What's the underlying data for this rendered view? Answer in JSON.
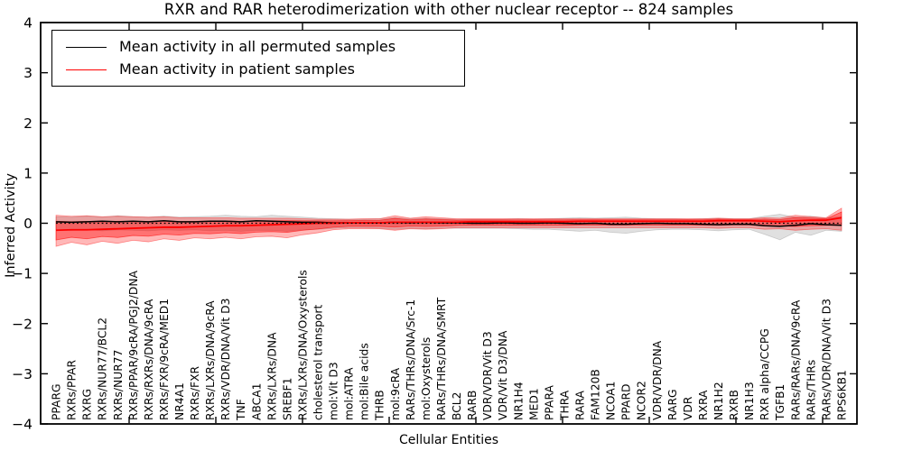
{
  "figure": {
    "title": "RXR and RAR heterodimerization with other nuclear receptor -- 824 samples",
    "xlabel": "Cellular Entities",
    "ylabel": "Inferred Activity",
    "legend": {
      "entries": [
        {
          "label": "Mean activity in all permuted samples",
          "color": "#000000"
        },
        {
          "label": "Mean activity in patient samples",
          "color": "#ff0000"
        }
      ]
    }
  },
  "chart_data": {
    "type": "line",
    "title": "RXR and RAR heterodimerization with other nuclear receptor -- 824 samples",
    "xlabel": "Cellular Entities",
    "ylabel": "Inferred Activity",
    "ylim": [
      -4,
      4
    ],
    "yticks": [
      -4,
      -3,
      -2,
      -1,
      0,
      1,
      2,
      3,
      4
    ],
    "ytick_labels": [
      "−4",
      "−3",
      "−2",
      "−1",
      "0",
      "1",
      "2",
      "3",
      "4"
    ],
    "grid": false,
    "legend_position": "upper left",
    "categories": [
      "PPARG",
      "RXRs/PPAR",
      "RXRG",
      "RXRs/NUR77/BCL2",
      "RXRs/NUR77",
      "RXRs/PPAR/9cRA/PGJ2/DNA",
      "RXRs/RXRs/DNA/9cRA",
      "RXRs/FXR/9cRA/MED1",
      "NR4A1",
      "RXRs/FXR",
      "RXRs/LXRs/DNA/9cRA",
      "RXRs/VDR/DNA/Vit D3",
      "TNF",
      "ABCA1",
      "RXRs/LXRs/DNA",
      "SREBF1",
      "RXRs/LXRs/DNA/Oxysterols",
      "cholesterol transport",
      "mol:Vit D3",
      "mol:ATRA",
      "mol:Bile acids",
      "THRB",
      "mol:9cRA",
      "RARs/THRs/DNA/Src-1",
      "mol:Oxysterols",
      "RARs/THRs/DNA/SMRT",
      "BCL2",
      "RARB",
      "VDR/VDR/Vit D3",
      "VDR/Vit D3/DNA",
      "NR1H4",
      "MED1",
      "PPARA",
      "THRA",
      "RARA",
      "FAM120B",
      "NCOA1",
      "PPARD",
      "NCOR2",
      "VDR/VDR/DNA",
      "RARG",
      "VDR",
      "RXRA",
      "NR1H2",
      "RXRB",
      "NR1H3",
      "RXR alpha/CCPG",
      "TGFB1",
      "RARs/RARs/DNA/9cRA",
      "RARs/THRs",
      "RARs/VDR/DNA/Vit D3",
      "RPS6KB1"
    ],
    "series": [
      {
        "name": "Mean activity in all permuted samples",
        "color": "#000000",
        "style": "solid",
        "values": [
          0.03,
          0.02,
          0.03,
          0.04,
          0.03,
          0.04,
          0.03,
          0.05,
          0.03,
          0.03,
          0.04,
          0.04,
          0.03,
          0.05,
          0.04,
          0.03,
          0.02,
          0.02,
          0.01,
          0.01,
          0.01,
          0.01,
          0.02,
          0.01,
          0.02,
          0.01,
          0.01,
          0.0,
          0.0,
          0.01,
          0.0,
          0.0,
          0.01,
          0.0,
          -0.01,
          0.0,
          -0.02,
          -0.02,
          -0.01,
          0.0,
          -0.01,
          -0.01,
          -0.02,
          -0.03,
          -0.02,
          -0.02,
          -0.05,
          -0.06,
          -0.04,
          -0.01,
          -0.03,
          -0.04
        ]
      },
      {
        "name": "Mean activity in patient samples",
        "color": "#ff0000",
        "style": "solid",
        "values": [
          -0.14,
          -0.13,
          -0.13,
          -0.12,
          -0.11,
          -0.1,
          -0.09,
          -0.08,
          -0.08,
          -0.07,
          -0.06,
          -0.05,
          -0.05,
          -0.04,
          -0.03,
          -0.02,
          -0.01,
          0.0,
          0.0,
          0.01,
          0.01,
          0.01,
          0.02,
          0.02,
          0.02,
          0.02,
          0.02,
          0.03,
          0.03,
          0.03,
          0.03,
          0.03,
          0.03,
          0.03,
          0.04,
          0.04,
          0.04,
          0.04,
          0.04,
          0.04,
          0.04,
          0.04,
          0.04,
          0.05,
          0.05,
          0.05,
          0.04,
          0.03,
          0.05,
          0.06,
          0.06,
          0.11
        ]
      }
    ],
    "bands": [
      {
        "name": "permuted samples spread",
        "color": "#999999",
        "opacity": 0.3,
        "upper": [
          0.13,
          0.12,
          0.14,
          0.12,
          0.15,
          0.13,
          0.12,
          0.14,
          0.12,
          0.13,
          0.14,
          0.16,
          0.14,
          0.13,
          0.16,
          0.14,
          0.12,
          0.1,
          0.09,
          0.08,
          0.08,
          0.09,
          0.11,
          0.09,
          0.1,
          0.09,
          0.08,
          0.08,
          0.08,
          0.08,
          0.09,
          0.08,
          0.09,
          0.1,
          0.11,
          0.1,
          0.11,
          0.12,
          0.1,
          0.09,
          0.09,
          0.08,
          0.09,
          0.1,
          0.09,
          0.09,
          0.14,
          0.18,
          0.12,
          0.14,
          0.1,
          0.13
        ],
        "lower": [
          -0.13,
          -0.14,
          -0.12,
          -0.15,
          -0.13,
          -0.14,
          -0.15,
          -0.13,
          -0.14,
          -0.13,
          -0.15,
          -0.14,
          -0.16,
          -0.14,
          -0.14,
          -0.16,
          -0.13,
          -0.12,
          -0.1,
          -0.09,
          -0.09,
          -0.1,
          -0.12,
          -0.1,
          -0.11,
          -0.1,
          -0.1,
          -0.1,
          -0.1,
          -0.1,
          -0.11,
          -0.12,
          -0.12,
          -0.14,
          -0.16,
          -0.14,
          -0.18,
          -0.2,
          -0.16,
          -0.13,
          -0.12,
          -0.12,
          -0.13,
          -0.15,
          -0.13,
          -0.12,
          -0.22,
          -0.33,
          -0.18,
          -0.24,
          -0.14,
          -0.16
        ]
      },
      {
        "name": "patient samples spread",
        "color": "#ff0000",
        "opacity": 0.28,
        "inner_fraction": 0.6,
        "inner_opacity": 0.38,
        "mean_series": 1,
        "upper": [
          0.16,
          0.14,
          0.15,
          0.13,
          0.14,
          0.13,
          0.12,
          0.13,
          0.11,
          0.11,
          0.11,
          0.11,
          0.1,
          0.1,
          0.1,
          0.1,
          0.09,
          0.08,
          0.08,
          0.08,
          0.09,
          0.09,
          0.15,
          0.1,
          0.13,
          0.11,
          0.09,
          0.09,
          0.09,
          0.09,
          0.09,
          0.09,
          0.09,
          0.09,
          0.09,
          0.09,
          0.09,
          0.09,
          0.09,
          0.09,
          0.09,
          0.09,
          0.09,
          0.1,
          0.09,
          0.09,
          0.11,
          0.1,
          0.16,
          0.13,
          0.11,
          0.3
        ],
        "lower": [
          -0.46,
          -0.38,
          -0.43,
          -0.36,
          -0.4,
          -0.34,
          -0.37,
          -0.31,
          -0.34,
          -0.29,
          -0.31,
          -0.28,
          -0.31,
          -0.27,
          -0.26,
          -0.29,
          -0.23,
          -0.19,
          -0.13,
          -0.11,
          -0.11,
          -0.11,
          -0.14,
          -0.11,
          -0.12,
          -0.11,
          -0.09,
          -0.09,
          -0.09,
          -0.09,
          -0.09,
          -0.09,
          -0.09,
          -0.09,
          -0.09,
          -0.09,
          -0.09,
          -0.09,
          -0.09,
          -0.09,
          -0.09,
          -0.09,
          -0.09,
          -0.1,
          -0.09,
          -0.09,
          -0.12,
          -0.11,
          -0.14,
          -0.12,
          -0.11,
          -0.14
        ]
      }
    ],
    "zero_line": {
      "value": 0,
      "color": "#000000",
      "style": "dotted"
    }
  }
}
